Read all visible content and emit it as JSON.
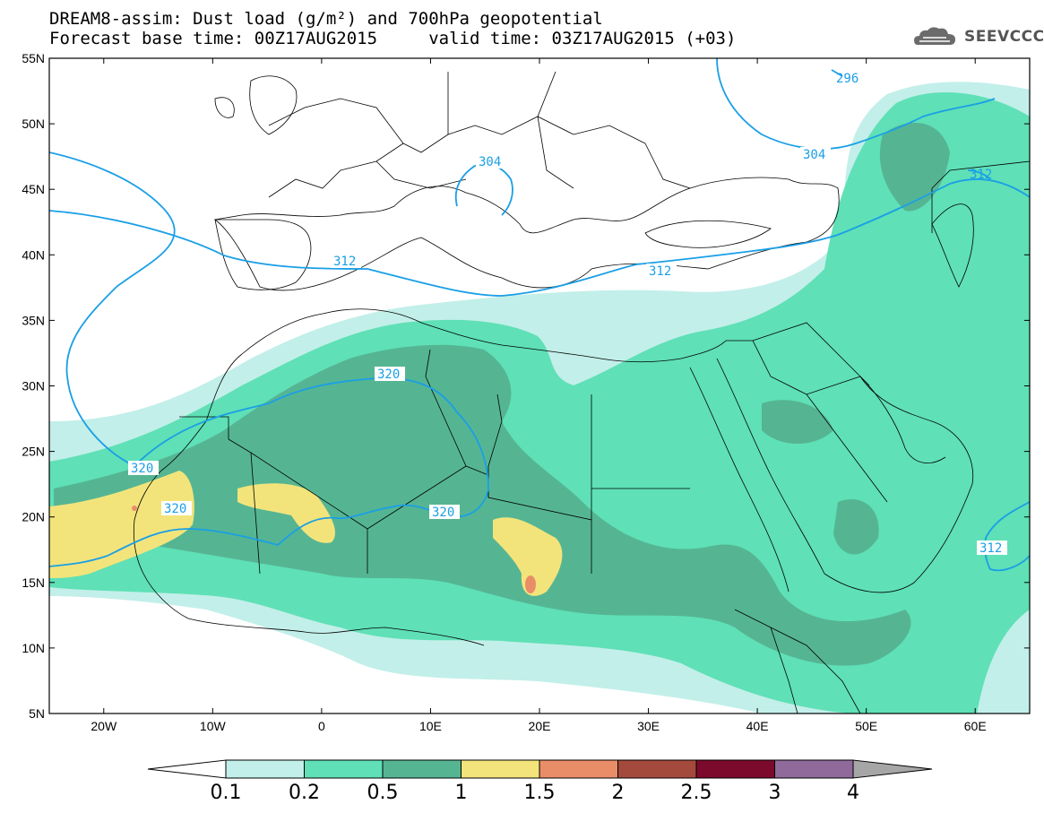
{
  "header": {
    "title_line1": "DREAM8-assim: Dust load (g/m²) and 700hPa geopotential",
    "title_line2": "Forecast base time: 00Z17AUG2015     valid time: 03Z17AUG2015 (+03)",
    "logo_text": "SEEVCCC"
  },
  "map": {
    "lon_range": [
      -25,
      65
    ],
    "lat_range": [
      5,
      55
    ],
    "lon_ticks": [
      "20W",
      "10W",
      "0",
      "10E",
      "20E",
      "30E",
      "40E",
      "50E",
      "60E"
    ],
    "lat_ticks": [
      "55N",
      "50N",
      "45N",
      "40N",
      "35N",
      "30N",
      "25N",
      "20N",
      "15N",
      "10N",
      "5N"
    ],
    "contour_labels": [
      "296",
      "304",
      "304",
      "312",
      "312",
      "312",
      "312",
      "320",
      "320",
      "320",
      "320"
    ],
    "contour_color": "#1a9fe6"
  },
  "colorbar": {
    "labels": [
      "0.1",
      "0.2",
      "0.5",
      "1",
      "1.5",
      "2",
      "2.5",
      "3",
      "4"
    ],
    "colors": [
      "#c2efe9",
      "#5fe0b6",
      "#55b593",
      "#f2e47b",
      "#e98d68",
      "#a34a3c",
      "#7b0a2c",
      "#8f6a9a"
    ]
  }
}
